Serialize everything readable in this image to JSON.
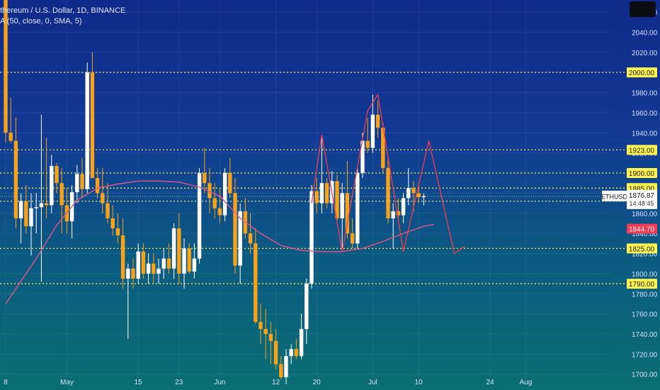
{
  "legend": {
    "title": "thereum / U.S. Dollar, 1D, BINANCE",
    "indicator": "A (50, close, 0, SMA, 5)"
  },
  "ticker": {
    "symbol": "ETHUSD",
    "price": "1876.87",
    "countdown": "14:48:45",
    "sma_value": "1844.70"
  },
  "colors": {
    "up": "#ffffff",
    "down": "#f7a21b",
    "sma": "#e0548a",
    "pattern": "#f23b52",
    "level": "#f5e84a",
    "level_label_bg": "#fff44f",
    "price_label_bg": "#ffffff",
    "sma_label_bg": "#f23b52",
    "axis_text": "#d6e0ff"
  },
  "chart_data": {
    "type": "candlestick",
    "ylim": [
      1697,
      2072
    ],
    "price_ticks": [
      1700,
      1720,
      1740,
      1760,
      1780,
      1800,
      1820,
      1840,
      1860,
      1880,
      1900,
      1920,
      1940,
      1960,
      1980,
      2000,
      2020,
      2040,
      2060
    ],
    "price_tick_labels": [
      "1700.00",
      "1720.00",
      "1740.00",
      "1760.00",
      "1780.00",
      "1800.00",
      "1820.00",
      "1840.00",
      "1860.00",
      "1880.00",
      "1900.00",
      "1920.00",
      "1940.00",
      "1960.00",
      "1980.00",
      "2000.00",
      "2020.00",
      "2040.00",
      "2060.00"
    ],
    "x_ticks": [
      {
        "label": "8",
        "index": 0
      },
      {
        "label": "May",
        "index": 12
      },
      {
        "label": "15",
        "index": 26
      },
      {
        "label": "23",
        "index": 34
      },
      {
        "label": "Jun",
        "index": 42
      },
      {
        "label": "12",
        "index": 53
      },
      {
        "label": "20",
        "index": 61
      },
      {
        "label": "Jul",
        "index": 72
      },
      {
        "label": "10",
        "index": 81
      },
      {
        "label": "24",
        "index": 95
      },
      {
        "label": "Aug",
        "index": 102
      }
    ],
    "horizontal_levels": [
      {
        "value": 2000,
        "label": "2000.00"
      },
      {
        "value": 1923,
        "label": "1923.00"
      },
      {
        "value": 1900,
        "label": "1900.00"
      },
      {
        "value": 1885,
        "label": "1885.00"
      },
      {
        "value": 1872,
        "label": "1872.00"
      },
      {
        "value": 1825,
        "label": "1825.00"
      },
      {
        "value": 1790,
        "label": "1790.00"
      }
    ],
    "candles": [
      [
        2085,
        2090,
        1930,
        1940
      ],
      [
        1940,
        1975,
        1930,
        1932
      ],
      [
        1932,
        1955,
        1845,
        1855
      ],
      [
        1855,
        1880,
        1830,
        1872
      ],
      [
        1872,
        1888,
        1840,
        1847
      ],
      [
        1847,
        1880,
        1818,
        1865
      ],
      [
        1865,
        1880,
        1840,
        1866
      ],
      [
        1866,
        1958,
        1792,
        1870
      ],
      [
        1870,
        1935,
        1855,
        1868
      ],
      [
        1868,
        1918,
        1860,
        1907
      ],
      [
        1907,
        1910,
        1880,
        1890
      ],
      [
        1890,
        1905,
        1840,
        1868
      ],
      [
        1868,
        1885,
        1840,
        1852
      ],
      [
        1852,
        1888,
        1835,
        1881
      ],
      [
        1881,
        1908,
        1870,
        1899
      ],
      [
        1899,
        1915,
        1875,
        1884
      ],
      [
        1884,
        2010,
        1880,
        2000
      ],
      [
        2000,
        2020,
        1895,
        1895
      ],
      [
        1895,
        1905,
        1875,
        1880
      ],
      [
        1880,
        1905,
        1860,
        1870
      ],
      [
        1870,
        1890,
        1850,
        1855
      ],
      [
        1855,
        1868,
        1838,
        1845
      ],
      [
        1845,
        1860,
        1830,
        1838
      ],
      [
        1838,
        1855,
        1785,
        1795
      ],
      [
        1795,
        1810,
        1735,
        1805
      ],
      [
        1805,
        1815,
        1785,
        1795
      ],
      [
        1795,
        1830,
        1790,
        1822
      ],
      [
        1822,
        1830,
        1795,
        1800
      ],
      [
        1800,
        1820,
        1790,
        1810
      ],
      [
        1810,
        1820,
        1790,
        1800
      ],
      [
        1800,
        1815,
        1790,
        1805
      ],
      [
        1805,
        1825,
        1795,
        1815
      ],
      [
        1815,
        1830,
        1800,
        1805
      ],
      [
        1805,
        1850,
        1795,
        1845
      ],
      [
        1845,
        1860,
        1790,
        1800
      ],
      [
        1800,
        1835,
        1785,
        1825
      ],
      [
        1825,
        1830,
        1800,
        1802
      ],
      [
        1802,
        1830,
        1795,
        1815
      ],
      [
        1815,
        1905,
        1810,
        1900
      ],
      [
        1900,
        1925,
        1880,
        1890
      ],
      [
        1890,
        1905,
        1860,
        1875
      ],
      [
        1875,
        1890,
        1855,
        1865
      ],
      [
        1865,
        1885,
        1850,
        1858
      ],
      [
        1858,
        1905,
        1852,
        1900
      ],
      [
        1900,
        1915,
        1875,
        1880
      ],
      [
        1880,
        1895,
        1800,
        1808
      ],
      [
        1808,
        1870,
        1790,
        1862
      ],
      [
        1862,
        1875,
        1835,
        1840
      ],
      [
        1840,
        1860,
        1820,
        1830
      ],
      [
        1830,
        1845,
        1750,
        1752
      ],
      [
        1752,
        1770,
        1730,
        1745
      ],
      [
        1745,
        1765,
        1715,
        1740
      ],
      [
        1740,
        1752,
        1710,
        1733
      ],
      [
        1733,
        1745,
        1705,
        1710
      ],
      [
        1710,
        1718,
        1695,
        1697
      ],
      [
        1697,
        1725,
        1690,
        1718
      ],
      [
        1718,
        1730,
        1710,
        1725
      ],
      [
        1725,
        1735,
        1715,
        1718
      ],
      [
        1718,
        1760,
        1715,
        1745
      ],
      [
        1745,
        1795,
        1730,
        1790
      ],
      [
        1790,
        1888,
        1785,
        1882
      ],
      [
        1882,
        1895,
        1860,
        1870
      ],
      [
        1870,
        1938,
        1860,
        1890
      ],
      [
        1890,
        1895,
        1865,
        1870
      ],
      [
        1870,
        1902,
        1860,
        1892
      ],
      [
        1892,
        1898,
        1850,
        1855
      ],
      [
        1855,
        1890,
        1825,
        1880
      ],
      [
        1880,
        1912,
        1835,
        1840
      ],
      [
        1840,
        1855,
        1825,
        1830
      ],
      [
        1830,
        1905,
        1825,
        1900
      ],
      [
        1900,
        1940,
        1895,
        1932
      ],
      [
        1932,
        1955,
        1920,
        1925
      ],
      [
        1925,
        1978,
        1920,
        1958
      ],
      [
        1958,
        1972,
        1935,
        1945
      ],
      [
        1945,
        1950,
        1900,
        1905
      ],
      [
        1905,
        1915,
        1850,
        1855
      ],
      [
        1855,
        1870,
        1825,
        1862
      ],
      [
        1862,
        1875,
        1855,
        1858
      ],
      [
        1858,
        1880,
        1850,
        1875
      ],
      [
        1875,
        1905,
        1868,
        1885
      ],
      [
        1885,
        1892,
        1862,
        1880
      ],
      [
        1880,
        1890,
        1870,
        1876
      ],
      [
        1876,
        1880,
        1868,
        1876.87
      ]
    ],
    "sma": [
      [
        0,
        1770
      ],
      [
        6,
        1815
      ],
      [
        10,
        1848
      ],
      [
        14,
        1873
      ],
      [
        18,
        1885
      ],
      [
        22,
        1889
      ],
      [
        26,
        1892
      ],
      [
        30,
        1892
      ],
      [
        34,
        1891
      ],
      [
        38,
        1886
      ],
      [
        42,
        1877
      ],
      [
        46,
        1855
      ],
      [
        50,
        1840
      ],
      [
        54,
        1828
      ],
      [
        58,
        1823
      ],
      [
        62,
        1822
      ],
      [
        66,
        1822
      ],
      [
        70,
        1825
      ],
      [
        74,
        1832
      ],
      [
        78,
        1840
      ],
      [
        82,
        1847
      ],
      [
        84,
        1849
      ]
    ],
    "pattern_path": [
      [
        60,
        1870
      ],
      [
        62,
        1938
      ],
      [
        66,
        1822
      ],
      [
        71,
        1962
      ],
      [
        73,
        1978
      ],
      [
        78,
        1822
      ],
      [
        83,
        1932
      ],
      [
        88,
        1820
      ],
      [
        90,
        1827
      ]
    ]
  }
}
